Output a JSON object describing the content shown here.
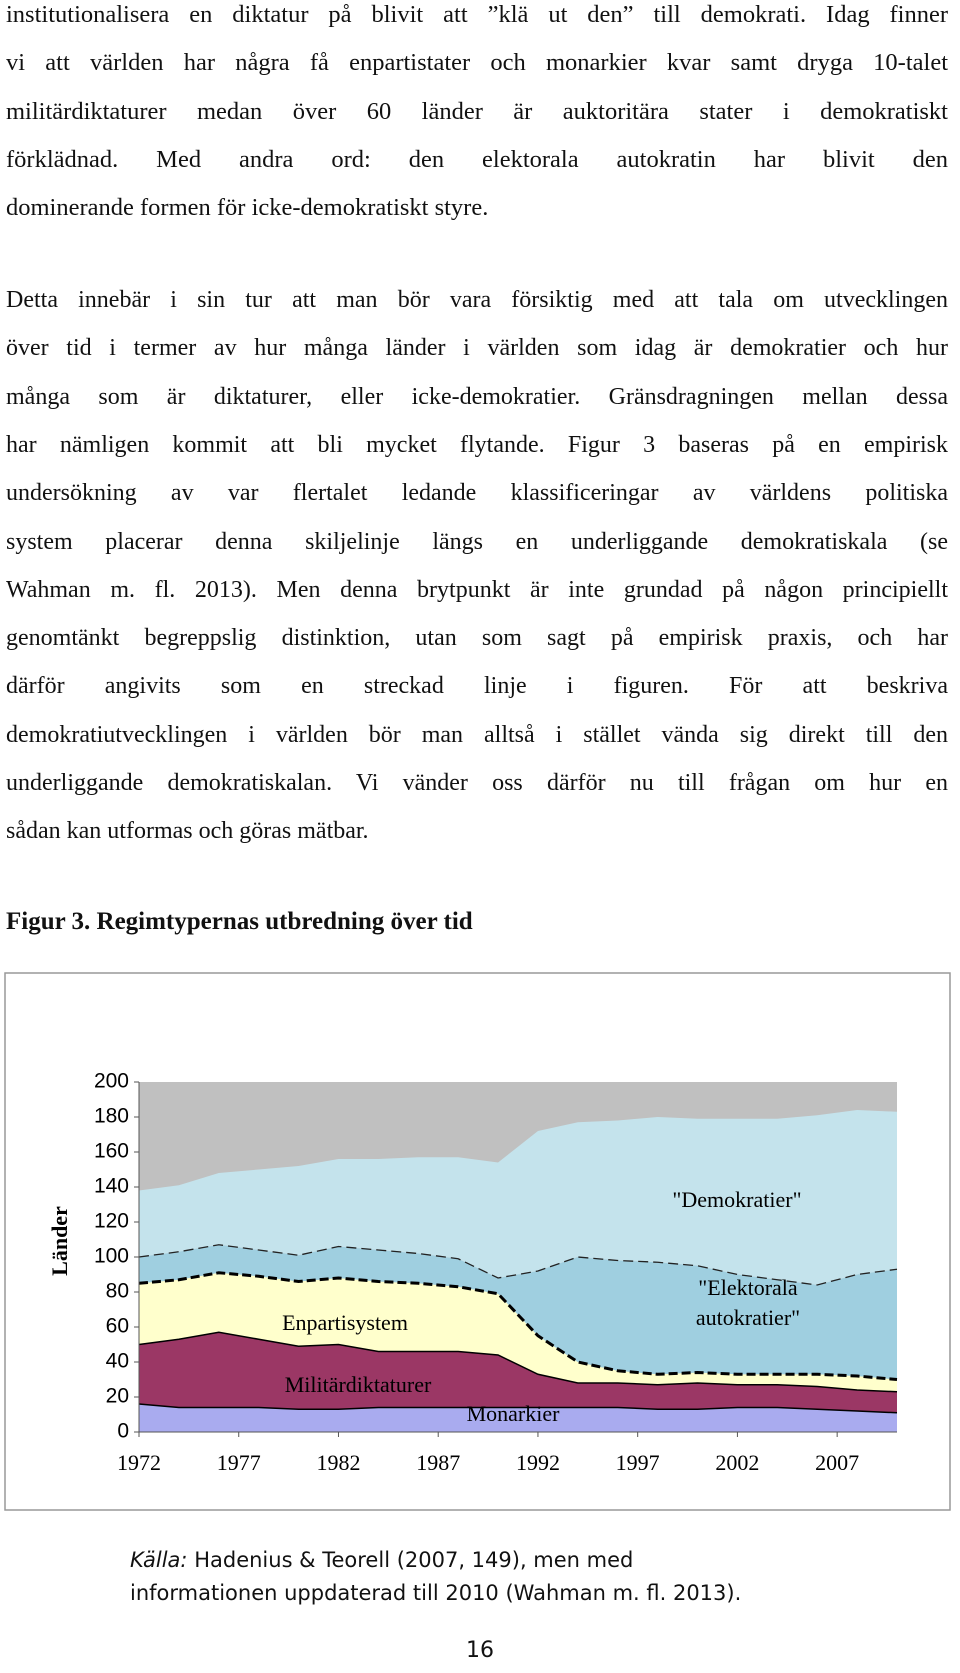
{
  "paragraphs": [
    {
      "lines": [
        "institutionalisera en diktatur på blivit att ”klä ut den” till demokrati. Idag finner",
        "vi att världen har några få enpartistater och monarkier kvar samt dryga 10-talet",
        "militärdiktaturer medan över 60 länder är auktoritära stater i demokratiskt",
        "förklädnad. Med andra ord: den elektorala autokratin har blivit den",
        "dominerande formen för icke-demokratiskt styre."
      ]
    },
    {
      "lines": [
        "Detta innebär i sin tur att man bör vara försiktig med att tala om utvecklingen",
        "över tid i termer av hur många länder i världen som idag är demokratier och hur",
        "många som är diktaturer, eller icke-demokratier. Gränsdragningen mellan dessa",
        "har nämligen kommit att bli mycket flytande. Figur 3 baseras på en empirisk",
        "undersökning av var flertalet ledande klassificeringar av världens politiska",
        "system placerar denna skiljelinje längs en underliggande demokratiskala (se",
        "Wahman m. fl. 2013). Men denna brytpunkt är inte grundad på någon principiellt",
        "genomtänkt begreppslig distinktion, utan som sagt på empirisk praxis, och har",
        "därför angivits som en streckad linje i figuren. För att beskriva",
        "demokratiutvecklingen i världen bör man alltså i stället vända sig direkt till den",
        "underliggande demokratiskalan. Vi vänder oss därför nu till frågan om hur en",
        "sådan kan utformas och göras mätbar."
      ]
    }
  ],
  "figure_title": "Figur 3. Regimtypernas utbredning över tid",
  "chart_data": {
    "type": "stacked_area",
    "y_label": "Länder",
    "x": [
      1972,
      1974,
      1976,
      1978,
      1980,
      1982,
      1984,
      1986,
      1988,
      1990,
      1992,
      1994,
      1996,
      1998,
      2000,
      2002,
      2004,
      2006,
      2008,
      2010
    ],
    "series": [
      {
        "name": "Monarkier",
        "color": "#a9abef",
        "values": [
          16,
          14,
          14,
          14,
          13,
          13,
          14,
          14,
          14,
          14,
          14,
          14,
          14,
          13,
          13,
          14,
          14,
          13,
          12,
          11
        ]
      },
      {
        "name": "Militärdiktaturer",
        "color": "#9b3765",
        "values": [
          34,
          39,
          43,
          39,
          36,
          37,
          32,
          32,
          32,
          30,
          19,
          14,
          14,
          14,
          15,
          13,
          13,
          13,
          12,
          12
        ]
      },
      {
        "name": "Enpartisystem",
        "color": "#ffffcc",
        "values": [
          35,
          34,
          34,
          36,
          37,
          38,
          40,
          39,
          37,
          35,
          22,
          12,
          7,
          6,
          6,
          6,
          6,
          7,
          8,
          7
        ]
      },
      {
        "name": "\"Elektorala autokratier\"",
        "color": "#9fcfe0",
        "values": [
          15,
          16,
          16,
          15,
          15,
          18,
          18,
          17,
          16,
          9,
          37,
          60,
          63,
          64,
          61,
          57,
          54,
          51,
          58,
          63
        ]
      },
      {
        "name": "\"Demokratier\"",
        "color": "#c4e3ec",
        "values": [
          38,
          38,
          41,
          46,
          51,
          50,
          52,
          55,
          58,
          66,
          80,
          77,
          80,
          83,
          84,
          89,
          92,
          97,
          94,
          90
        ]
      }
    ],
    "background_color": "#c0c0c0",
    "xlim": [
      1972,
      2010
    ],
    "xticks": [
      1972,
      1977,
      1982,
      1987,
      1992,
      1997,
      2002,
      2007
    ],
    "ylim": [
      0,
      200
    ],
    "yticks": [
      0,
      20,
      40,
      60,
      80,
      100,
      120,
      140,
      160,
      180,
      200
    ],
    "grid": false
  },
  "source": {
    "label": "Källa:",
    "lines": [
      "Hadenius & Teorell (2007, 149), men med",
      "informationen uppdaterad till 2010 (Wahman m. fl. 2013)."
    ]
  },
  "page_number": "16"
}
